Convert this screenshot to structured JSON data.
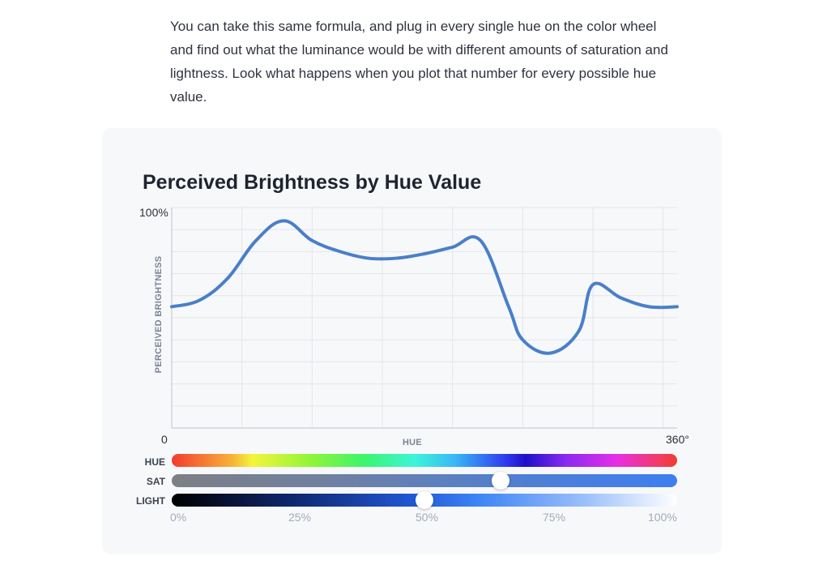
{
  "intro_text": "You can take this same formula, and plug in every single hue on the color wheel and find out what the luminance would be with different amounts of saturation and lightness. Look what happens when you plot that number for every possible hue value.",
  "chart_data": {
    "type": "line",
    "title": "Perceived Brightness by Hue Value",
    "xlabel": "HUE",
    "ylabel": "PERCEIVED BRIGHTNESS",
    "xlim": [
      0,
      360
    ],
    "ylim": [
      0,
      100
    ],
    "x_tick_labels": [
      "0",
      "360°"
    ],
    "y_tick_labels": [
      "100%"
    ],
    "grid": true,
    "series_color": "#4a7fc8",
    "x": [
      0,
      20,
      40,
      60,
      80,
      100,
      120,
      140,
      160,
      180,
      200,
      220,
      240,
      250,
      270,
      290,
      300,
      320,
      340,
      360
    ],
    "y": [
      55,
      58,
      68,
      85,
      94,
      85,
      80,
      77,
      77,
      79,
      82,
      85,
      55,
      40,
      34,
      44,
      65,
      59,
      55,
      55
    ]
  },
  "controls": {
    "hue_label": "HUE",
    "sat_label": "SAT",
    "light_label": "LIGHT",
    "sat_value": 0.65,
    "light_value": 0.5,
    "scale_labels": [
      "0%",
      "25%",
      "50%",
      "75%",
      "100%"
    ]
  }
}
